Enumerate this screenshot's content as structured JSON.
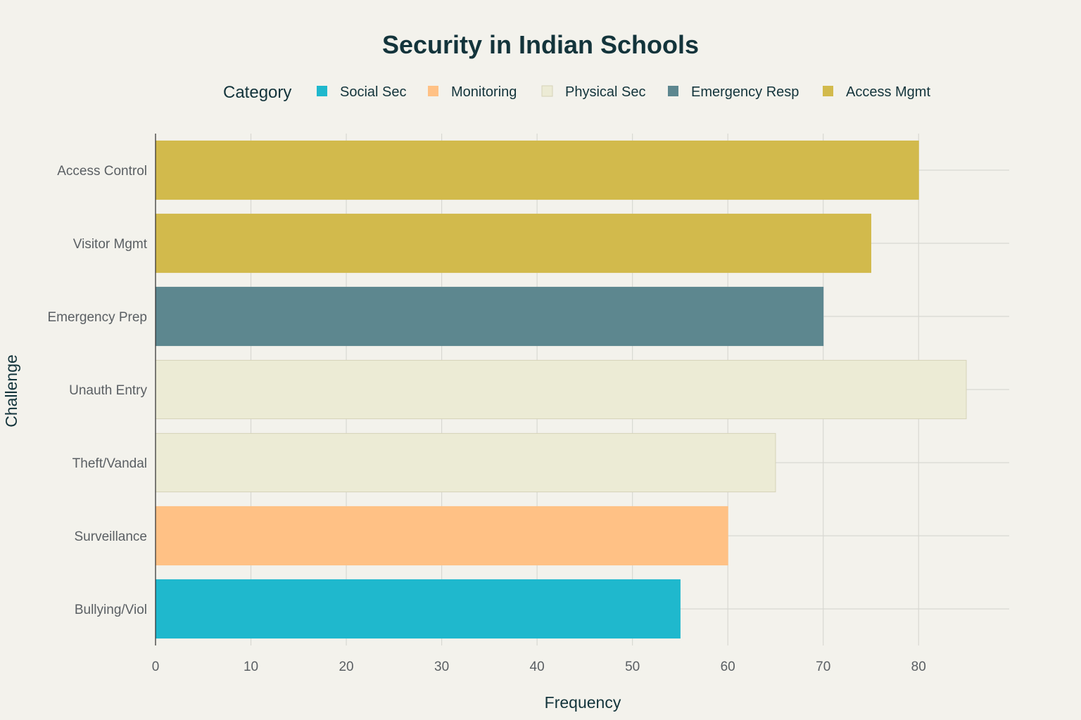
{
  "chart_data": {
    "type": "bar",
    "orientation": "horizontal",
    "title": "Security in Indian Schools",
    "xlabel": "Frequency",
    "ylabel": "Challenge",
    "xlim": [
      0,
      89.5
    ],
    "x_ticks": [
      0,
      10,
      20,
      30,
      40,
      50,
      60,
      70,
      80
    ],
    "grid": true,
    "legend": {
      "title": "Category",
      "placement": "top",
      "entries": [
        {
          "name": "Social Sec",
          "color": "#1fb8cd"
        },
        {
          "name": "Monitoring",
          "color": "#ffc185"
        },
        {
          "name": "Physical Sec",
          "color": "#eceBd5"
        },
        {
          "name": "Emergency Resp",
          "color": "#5d878f"
        },
        {
          "name": "Access Mgmt",
          "color": "#d2ba4c"
        }
      ]
    },
    "bars": [
      {
        "category": "Access Control",
        "value": 80,
        "group": "Access Mgmt"
      },
      {
        "category": "Visitor Mgmt",
        "value": 75,
        "group": "Access Mgmt"
      },
      {
        "category": "Emergency Prep",
        "value": 70,
        "group": "Emergency Resp"
      },
      {
        "category": "Unauth Entry",
        "value": 85,
        "group": "Physical Sec"
      },
      {
        "category": "Theft/Vandal",
        "value": 65,
        "group": "Physical Sec"
      },
      {
        "category": "Surveillance",
        "value": 60,
        "group": "Monitoring"
      },
      {
        "category": "Bullying/Viol",
        "value": 55,
        "group": "Social Sec"
      }
    ]
  }
}
